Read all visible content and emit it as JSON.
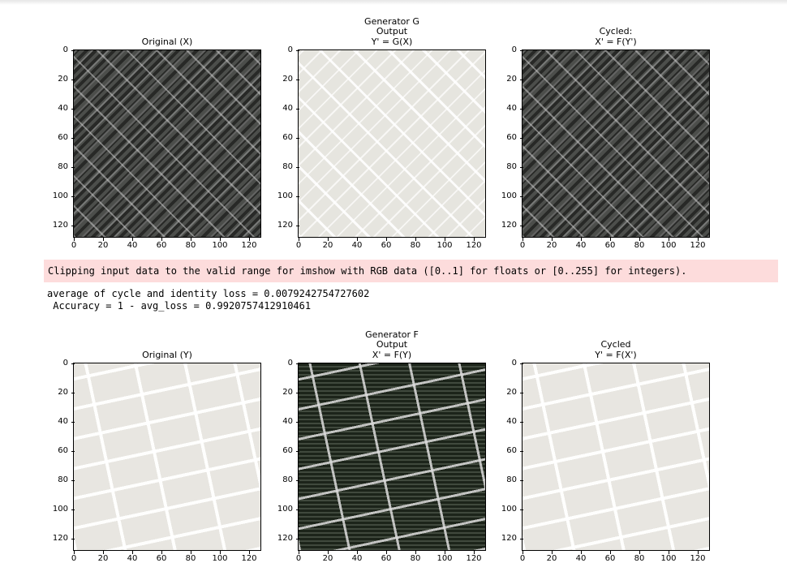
{
  "figure1": {
    "panels": [
      {
        "title": "Original (X)",
        "image": "satellite-aerial-dark"
      },
      {
        "title": "Generator G\nOutput\nY' = G(X)",
        "image": "map-render-light"
      },
      {
        "title": "Cycled:\nX' = F(Y')",
        "image": "satellite-aerial-dark"
      }
    ]
  },
  "warning": "Clipping input data to the valid range for imshow with RGB data ([0..1] for floats or [0..255] for integers).",
  "output_lines": {
    "line1": "average of cycle and identity loss = 0.0079242754727602",
    "line2": " Accuracy = 1 - avg_loss = 0.9920757412910461"
  },
  "figure2": {
    "panels": [
      {
        "title": "Original (Y)",
        "image": "map-render-light"
      },
      {
        "title": "Generator F\nOutput\nX' = F(Y)",
        "image": "satellite-aerial-dark"
      },
      {
        "title": "Cycled\nY' = F(X')",
        "image": "map-render-light"
      }
    ]
  },
  "axis": {
    "yticks": [
      "0",
      "20",
      "40",
      "60",
      "80",
      "100",
      "120"
    ],
    "xticks": [
      "0",
      "20",
      "40",
      "60",
      "80",
      "100",
      "120"
    ]
  }
}
